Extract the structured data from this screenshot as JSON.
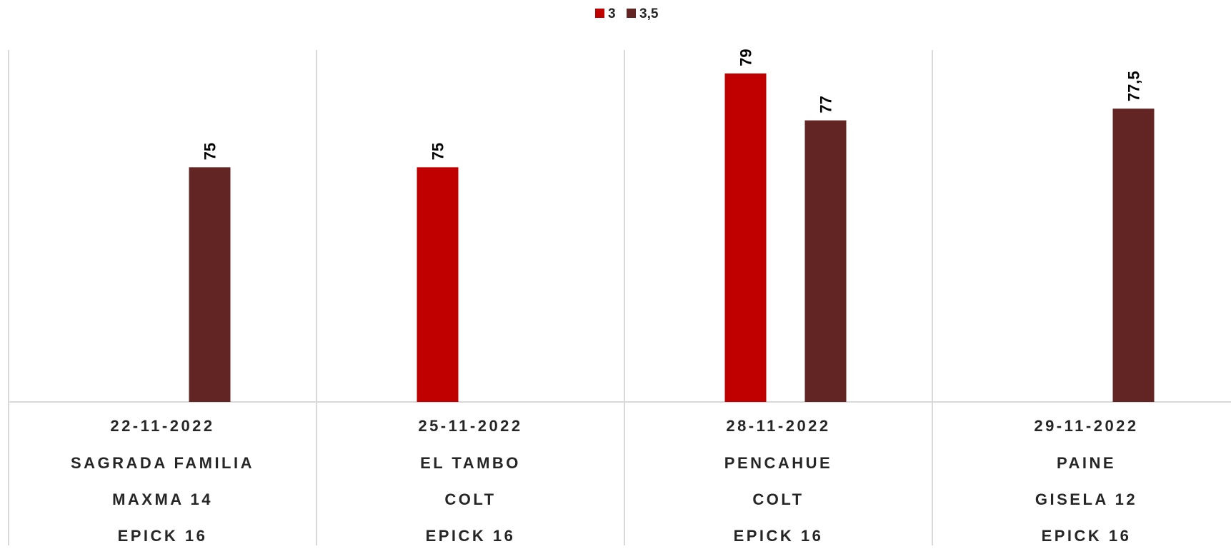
{
  "chart_data": {
    "type": "bar",
    "title": "",
    "xlabel": "",
    "ylabel": "",
    "ylim": [
      65,
      80
    ],
    "grid": true,
    "legend_position": "top",
    "categories": [
      {
        "lines": [
          "22-11-2022",
          "SAGRADA FAMILIA",
          "MAXMA 14",
          "EPICK 16"
        ]
      },
      {
        "lines": [
          "25-11-2022",
          "EL TAMBO",
          "COLT",
          "EPICK 16"
        ]
      },
      {
        "lines": [
          "28-11-2022",
          "PENCAHUE",
          "COLT",
          "EPICK 16"
        ]
      },
      {
        "lines": [
          "29-11-2022",
          "PAINE",
          "GISELA 12",
          "EPICK 16"
        ]
      }
    ],
    "series": [
      {
        "name": "3",
        "color": "#C00000",
        "values": [
          null,
          75,
          79,
          null
        ],
        "labels": [
          "",
          "75",
          "79",
          ""
        ]
      },
      {
        "name": "3,5",
        "color": "#632523",
        "values": [
          75,
          null,
          77,
          77.5
        ],
        "labels": [
          "75",
          "",
          "77",
          "77,5"
        ]
      }
    ]
  }
}
